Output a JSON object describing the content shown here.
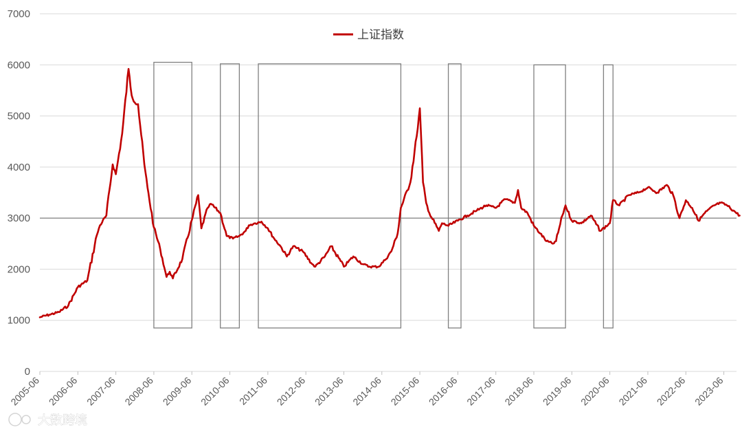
{
  "chart_data": {
    "type": "line",
    "title": "",
    "xlabel": "",
    "ylabel": "",
    "ylim": [
      0,
      7000
    ],
    "yticks": [
      0,
      1000,
      2000,
      3000,
      4000,
      5000,
      6000,
      7000
    ],
    "x_tick_labels": [
      "2005-06",
      "2006-06",
      "2007-06",
      "2008-06",
      "2009-06",
      "2010-06",
      "2011-06",
      "2012-06",
      "2013-06",
      "2014-06",
      "2015-06",
      "2016-06",
      "2017-06",
      "2018-06",
      "2019-06",
      "2020-06",
      "2021-06",
      "2022-06",
      "2023-06"
    ],
    "grid": "horizontal",
    "legend": {
      "position": "top-center"
    },
    "reference_line": {
      "y": 3000
    },
    "series": [
      {
        "name": "上证指数",
        "color": "#c00000",
        "x": [
          "2005-06",
          "2005-09",
          "2005-12",
          "2006-03",
          "2006-06",
          "2006-09",
          "2006-12",
          "2007-01",
          "2007-03",
          "2007-05",
          "2007-06",
          "2007-08",
          "2007-10",
          "2007-11",
          "2007-12",
          "2008-01",
          "2008-03",
          "2008-04",
          "2008-06",
          "2008-08",
          "2008-10",
          "2008-11",
          "2008-12",
          "2009-03",
          "2009-06",
          "2009-08",
          "2009-09",
          "2009-11",
          "2009-12",
          "2010-03",
          "2010-05",
          "2010-07",
          "2010-09",
          "2010-11",
          "2010-12",
          "2011-02",
          "2011-04",
          "2011-06",
          "2011-08",
          "2011-10",
          "2011-12",
          "2012-02",
          "2012-05",
          "2012-08",
          "2012-09",
          "2012-12",
          "2013-02",
          "2013-06",
          "2013-09",
          "2013-12",
          "2014-02",
          "2014-05",
          "2014-07",
          "2014-09",
          "2014-11",
          "2014-12",
          "2015-03",
          "2015-05",
          "2015-06",
          "2015-07",
          "2015-08",
          "2015-09",
          "2015-12",
          "2016-01",
          "2016-03",
          "2016-06",
          "2016-09",
          "2016-12",
          "2017-03",
          "2017-06",
          "2017-09",
          "2017-12",
          "2018-01",
          "2018-02",
          "2018-04",
          "2018-06",
          "2018-08",
          "2018-10",
          "2018-12",
          "2019-01",
          "2019-03",
          "2019-04",
          "2019-06",
          "2019-09",
          "2019-12",
          "2020-03",
          "2020-06",
          "2020-07",
          "2020-09",
          "2020-12",
          "2021-03",
          "2021-06",
          "2021-09",
          "2021-12",
          "2022-02",
          "2022-04",
          "2022-06",
          "2022-08",
          "2022-10",
          "2022-12",
          "2023-03",
          "2023-05",
          "2023-07",
          "2023-09",
          "2023-11"
        ],
        "values": [
          1060,
          1110,
          1160,
          1290,
          1650,
          1780,
          2670,
          2860,
          3050,
          4050,
          3860,
          4650,
          5920,
          5400,
          5260,
          5230,
          4050,
          3600,
          2820,
          2400,
          1850,
          1950,
          1820,
          2200,
          2960,
          3450,
          2800,
          3200,
          3280,
          3100,
          2650,
          2600,
          2650,
          2750,
          2860,
          2900,
          2930,
          2800,
          2600,
          2450,
          2250,
          2450,
          2350,
          2100,
          2050,
          2250,
          2450,
          2050,
          2250,
          2100,
          2050,
          2050,
          2180,
          2350,
          2700,
          3200,
          3700,
          4600,
          5150,
          3700,
          3300,
          3100,
          2750,
          2900,
          2850,
          2950,
          3050,
          3150,
          3250,
          3200,
          3370,
          3300,
          3550,
          3200,
          3100,
          2850,
          2700,
          2550,
          2500,
          2550,
          3050,
          3250,
          2950,
          2900,
          3050,
          2750,
          2900,
          3350,
          3250,
          3450,
          3500,
          3600,
          3500,
          3650,
          3450,
          3000,
          3350,
          3200,
          2950,
          3100,
          3250,
          3300,
          3250,
          3150,
          3050
        ]
      }
    ],
    "highlight_boxes": [
      {
        "x_start": "2008-06",
        "x_end": "2009-06",
        "y_bottom": 850,
        "y_top": 6050
      },
      {
        "x_start": "2010-03",
        "x_end": "2010-09",
        "y_bottom": 850,
        "y_top": 6020
      },
      {
        "x_start": "2011-03",
        "x_end": "2014-12",
        "y_bottom": 850,
        "y_top": 6020
      },
      {
        "x_start": "2016-03",
        "x_end": "2016-07",
        "y_bottom": 850,
        "y_top": 6020
      },
      {
        "x_start": "2018-06",
        "x_end": "2019-04",
        "y_bottom": 850,
        "y_top": 6000
      },
      {
        "x_start": "2020-04",
        "x_end": "2020-07",
        "y_bottom": 850,
        "y_top": 6000
      }
    ]
  },
  "watermark": {
    "text": "大数跨境"
  }
}
